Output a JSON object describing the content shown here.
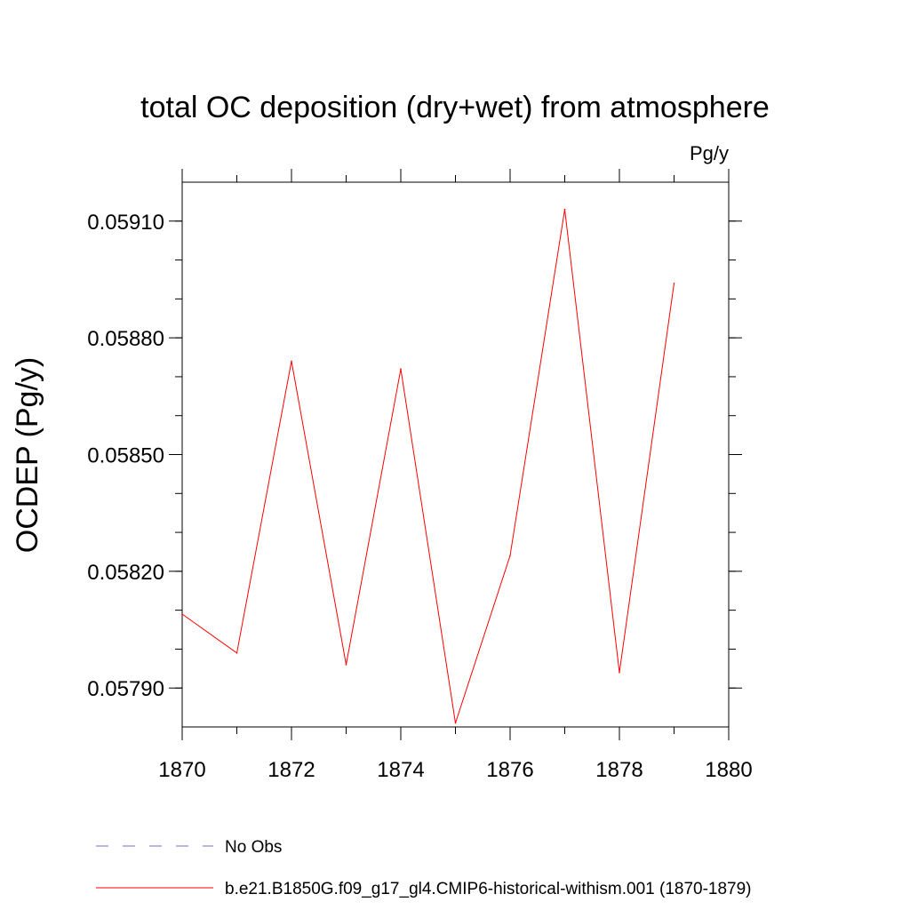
{
  "chart_data": {
    "type": "line",
    "title": "total OC deposition (dry+wet) from atmosphere",
    "units_label": "Pg/y",
    "ylabel": "OCDEP  (Pg/y)",
    "xlabel": "",
    "xlim": [
      1870,
      1880
    ],
    "ylim": [
      0.0578,
      0.0592
    ],
    "x_ticks": [
      "1870",
      "1872",
      "1874",
      "1876",
      "1878",
      "1880"
    ],
    "y_ticks": [
      "0.05790",
      "0.05820",
      "0.05850",
      "0.05880",
      "0.05910"
    ],
    "series": [
      {
        "name": "b.e21.B1850G.f09_g17_gl4.CMIP6-historical-withism.001 (1870-1879)",
        "color": "#ff0000",
        "x": [
          1870,
          1871,
          1872,
          1873,
          1874,
          1875,
          1876,
          1877,
          1878,
          1879
        ],
        "y": [
          0.05809,
          0.05799,
          0.05874,
          0.05796,
          0.05872,
          0.05781,
          0.05824,
          0.05913,
          0.05794,
          0.05894
        ]
      }
    ],
    "legend": [
      {
        "label": "No Obs",
        "color": "#7b68c8",
        "dashed": true
      },
      {
        "label": "b.e21.B1850G.f09_g17_gl4.CMIP6-historical-withism.001 (1870-1879)",
        "color": "#ff0000",
        "dashed": false
      }
    ]
  }
}
